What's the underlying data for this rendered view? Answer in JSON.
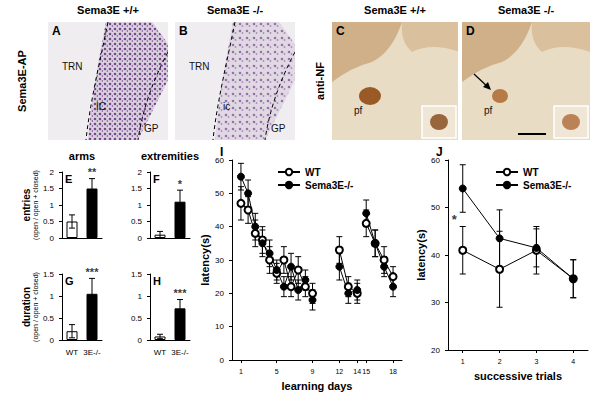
{
  "image_groups": [
    {
      "row_label": "Sema3E-AP",
      "columns": [
        "Sema3E +/+",
        "Sema3E -/-"
      ],
      "panels": [
        {
          "label": "A",
          "regions": [
            "TRN",
            "IC",
            "GP"
          ]
        },
        {
          "label": "B",
          "regions": [
            "TRN",
            "ic",
            "GP"
          ]
        }
      ]
    },
    {
      "row_label": "anti-NF",
      "columns": [
        "Sema3E +/+",
        "Sema3E -/-"
      ],
      "panels": [
        {
          "label": "C",
          "regions": [
            "pf"
          ]
        },
        {
          "label": "D",
          "regions": [
            "pf"
          ]
        }
      ]
    }
  ],
  "chart_data": [
    {
      "type": "bar",
      "label": "E",
      "title": "arms",
      "ylabel": [
        "entries",
        "(open / open + closed)"
      ],
      "categories": [
        null,
        null
      ],
      "values": [
        0.5,
        1.5
      ],
      "errors": [
        0.2,
        0.3
      ],
      "colors": [
        "#ffffff",
        "#000000"
      ],
      "ylim": [
        0,
        2
      ],
      "yticks": [
        0,
        0.5,
        1,
        1.5,
        2
      ],
      "annotations": [
        {
          "index": 1,
          "text": "**"
        }
      ]
    },
    {
      "type": "bar",
      "label": "F",
      "title": "extremities",
      "categories": [
        null,
        null
      ],
      "values": [
        0.1,
        1.1
      ],
      "errors": [
        0.1,
        0.35
      ],
      "colors": [
        "#ffffff",
        "#000000"
      ],
      "ylim": [
        0,
        2
      ],
      "yticks": [
        0,
        0.5,
        1,
        1.5,
        2
      ],
      "annotations": [
        {
          "index": 1,
          "text": "*"
        }
      ]
    },
    {
      "type": "bar",
      "label": "G",
      "ylabel": [
        "duration",
        "(open / open + closed)"
      ],
      "categories": [
        "WT",
        "3E-/-"
      ],
      "values": [
        0.2,
        1.05
      ],
      "errors": [
        0.15,
        0.35
      ],
      "colors": [
        "#ffffff",
        "#000000"
      ],
      "ylim": [
        0,
        1.5
      ],
      "yticks": [
        0,
        0.5,
        1,
        1.5
      ],
      "annotations": [
        {
          "index": 1,
          "text": "***"
        }
      ]
    },
    {
      "type": "bar",
      "label": "H",
      "categories": [
        "WT",
        "3E-/-"
      ],
      "values": [
        0.08,
        0.72
      ],
      "errors": [
        0.05,
        0.2
      ],
      "colors": [
        "#ffffff",
        "#000000"
      ],
      "ylim": [
        0,
        1.5
      ],
      "yticks": [
        0,
        0.5,
        1,
        1.5
      ],
      "annotations": [
        {
          "index": 1,
          "text": "***"
        }
      ]
    },
    {
      "type": "line",
      "label": "I",
      "xlabel": "learning days",
      "ylabel": "latency(s)",
      "x": [
        1,
        1.8,
        2.6,
        3.4,
        4.2,
        5,
        5.8,
        6.6,
        7.4,
        8.2,
        9,
        10.5,
        12,
        13,
        14,
        14.5,
        15,
        16,
        17,
        18
      ],
      "series": [
        {
          "name": "WT",
          "color": "#000000",
          "marker": "open_circle",
          "values": [
            47,
            45,
            38,
            36,
            30,
            26,
            30,
            22,
            27,
            22,
            20,
            null,
            33,
            22,
            20,
            null,
            41,
            35,
            30,
            25
          ],
          "errors": [
            5,
            4,
            4,
            4,
            4,
            3,
            4,
            3,
            4,
            3,
            3,
            null,
            4,
            3,
            3,
            null,
            4,
            4,
            4,
            3
          ]
        },
        {
          "name": "Sema3E-/-",
          "color": "#000000",
          "marker": "circle",
          "values": [
            55,
            50,
            40,
            35,
            32,
            27,
            22,
            28,
            21,
            24,
            18,
            null,
            28,
            20,
            21,
            null,
            44,
            35,
            28,
            22
          ],
          "errors": [
            4,
            4,
            4,
            4,
            4,
            3,
            3,
            4,
            3,
            3,
            3,
            null,
            4,
            3,
            3,
            null,
            4,
            4,
            3,
            3
          ]
        }
      ],
      "xlim": [
        0,
        19
      ],
      "xticks": [
        1,
        5,
        9,
        12,
        14,
        15,
        18
      ],
      "ylim": [
        0,
        60
      ],
      "yticks": [
        0,
        10,
        20,
        30,
        40,
        50,
        60
      ],
      "legend": "upper left"
    },
    {
      "type": "line",
      "label": "J",
      "xlabel": "successive trials",
      "ylabel": "latency(s)",
      "x": [
        1,
        2,
        3,
        4
      ],
      "series": [
        {
          "name": "WT",
          "color": "#000000",
          "marker": "open_circle",
          "values": [
            41,
            37,
            41,
            35
          ],
          "errors": [
            5,
            8,
            5,
            4
          ]
        },
        {
          "name": "Sema3E-/-",
          "color": "#000000",
          "marker": "circle",
          "values": [
            54,
            43.5,
            41.5,
            35
          ],
          "errors": [
            5,
            6,
            4,
            4
          ]
        }
      ],
      "xlim": [
        0.6,
        4.4
      ],
      "xticks": [
        1,
        2,
        3,
        4
      ],
      "ylim": [
        20,
        60
      ],
      "yticks": [
        20,
        30,
        40,
        50,
        60
      ],
      "legend": "upper left",
      "annotations": [
        {
          "x": 1,
          "text": "*"
        }
      ]
    }
  ]
}
